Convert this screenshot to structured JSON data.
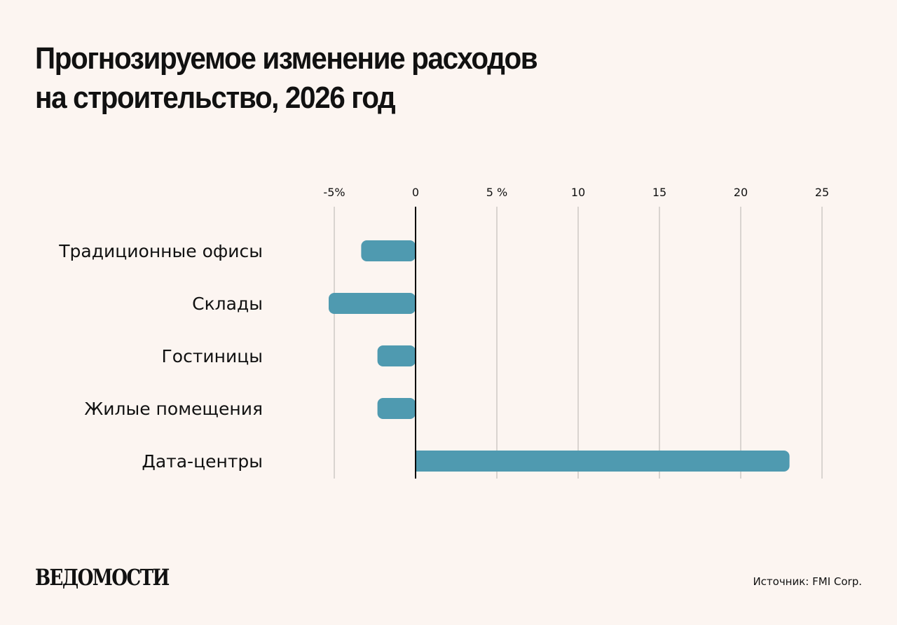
{
  "title": [
    "Прогнозируемое изменение расходов",
    "на строительство, 2026 год"
  ],
  "chart_data": {
    "type": "bar",
    "orientation": "horizontal",
    "categories": [
      "Традиционные офисы",
      "Склады",
      "Гостиницы",
      "Жилые помещения",
      "Дата-центры"
    ],
    "values": [
      -3,
      -5,
      -2,
      -2,
      23
    ],
    "xlim": [
      -5,
      25
    ],
    "ticks": [
      -5,
      0,
      5,
      10,
      15,
      20,
      25
    ],
    "tick_labels": [
      "-5%",
      "0",
      "5 %",
      "10",
      "15",
      "20",
      "25"
    ],
    "axis_position": "top",
    "grid": true,
    "bar_color": "#4f9ab0"
  },
  "logo": "ВЕДОМОСТИ",
  "source": "Источник: FMI Corp."
}
